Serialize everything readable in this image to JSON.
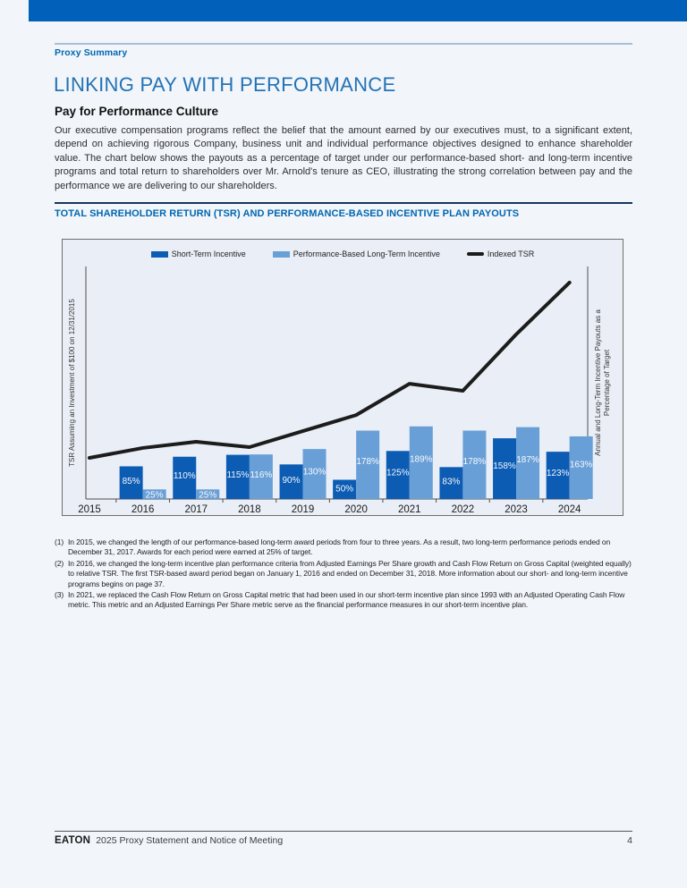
{
  "page": {
    "eyebrow": "Proxy Summary",
    "title": "LINKING PAY WITH PERFORMANCE",
    "subtitle": "Pay for Performance Culture",
    "body": "Our executive compensation programs reflect the belief that the amount earned by our executives must, to a significant extent, depend on achieving rigorous Company, business unit and individual performance objectives designed to enhance shareholder value. The chart below shows the payouts as a percentage of target under our performance-based short- and long-term incentive programs and total return to shareholders over Mr. Arnold's tenure as CEO, illustrating the strong correlation between pay and the performance we are delivering to our shareholders.",
    "section_title": "TOTAL SHAREHOLDER RETURN (TSR) AND PERFORMANCE-BASED INCENTIVE PLAN PAYOUTS"
  },
  "chart_data": {
    "type": "bar",
    "title": "Total Shareholder Return (TSR) and Performance-Based Incentive Plan Payouts",
    "categories": [
      "2015",
      "2016",
      "2017",
      "2018",
      "2019",
      "2020",
      "2021",
      "2022",
      "2023",
      "2024"
    ],
    "series": [
      {
        "name": "Short-Term Incentive",
        "type": "bar",
        "color": "#0d5cb4",
        "unit": "%",
        "values": [
          null,
          85,
          110,
          115,
          90,
          50,
          125,
          83,
          158,
          123
        ]
      },
      {
        "name": "Performance-Based Long-Term Incentive",
        "type": "bar",
        "color": "#699fd7",
        "unit": "%",
        "values": [
          null,
          25,
          25,
          116,
          130,
          178,
          189,
          178,
          187,
          163
        ]
      },
      {
        "name": "Indexed TSR",
        "type": "line",
        "color": "#1c1c1c",
        "unit": "$ indexed, 2015 = 100 (estimated from plot)",
        "values": [
          100,
          124,
          139,
          126,
          165,
          204,
          280,
          263,
          400,
          526
        ]
      }
    ],
    "left_axis_label": "TSR Assuming an Investment of $100 on 12/31/2015",
    "right_axis_label_lines": [
      "Annual and Long-Term Incentive Payouts as a",
      "Percentage of Target"
    ],
    "legend_position": "top",
    "numeric_axis_tick_labels": false,
    "grid": false,
    "bar_label_color": "#ffffff",
    "left_axis_range": [
      0,
      565
    ],
    "right_axis_range_pct": [
      0,
      605
    ]
  },
  "footnotes": [
    {
      "marker": "(1)",
      "text": "In 2015, we changed the length of our performance-based long-term award periods from four to three years. As a result, two long-term performance periods ended on December 31, 2017. Awards for each period were earned at 25% of target."
    },
    {
      "marker": "(2)",
      "text": "In 2016, we changed the long-term incentive plan performance criteria from Adjusted Earnings Per Share growth and Cash Flow Return on Gross Capital (weighted equally) to relative TSR. The first TSR-based award period began on January 1, 2016 and ended on December 31, 2018. More information about our short- and long-term incentive programs begins on page 37."
    },
    {
      "marker": "(3)",
      "text": "In 2021, we replaced the Cash Flow Return on Gross Capital metric that had been used in our short-term incentive plan since 1993 with an Adjusted Operating Cash Flow metric. This metric and an Adjusted Earnings Per Share metric serve as the financial performance measures in our short-term incentive plan."
    }
  ],
  "footer": {
    "brand": "EATON",
    "text": "2025 Proxy Statement and Notice of Meeting",
    "page_number": "4"
  }
}
